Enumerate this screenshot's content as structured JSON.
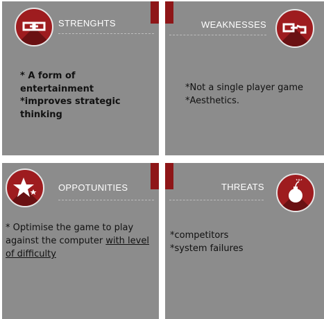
{
  "strengths": {
    "title": "STRENGHTS",
    "lines": [
      "* A  form of",
      "entertainment",
      "*improves strategic",
      "thinking"
    ]
  },
  "weaknesses": {
    "title": "WEAKNESSES",
    "lines": [
      "*Not a single player game",
      "*Aesthetics."
    ]
  },
  "opportunities": {
    "title": "OPPOTUNITIES",
    "lines": [
      "* Optimise the game to play",
      "against the computer",
      "with level",
      "of difficulty"
    ]
  },
  "threats": {
    "title": "THREATS",
    "lines": [
      "*competitors",
      "*system failures"
    ]
  },
  "icons": {
    "strengths": "chain-link-icon",
    "weaknesses": "broken-link-icon",
    "opportunities": "star-icon",
    "threats": "bomb-icon"
  },
  "colors": {
    "panel": "#8c8c8c",
    "accent": "#9e1c1f",
    "accent_dark": "#8e1618"
  }
}
